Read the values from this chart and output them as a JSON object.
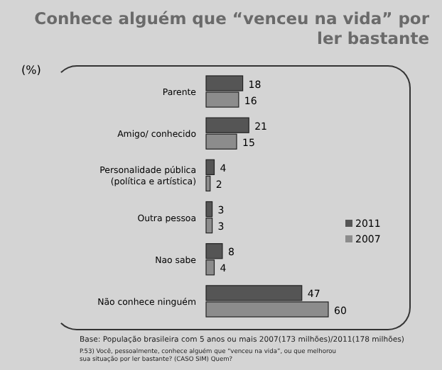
{
  "chart_data": {
    "type": "bar",
    "orientation": "horizontal",
    "title": "Conhece alguém que “venceu na vida” por ler bastante",
    "ylabel": "(%)",
    "categories": [
      "Parente",
      "Amigo/ conhecido",
      "Personalidade pública (política e artística)",
      "Outra pessoa",
      "Nao sabe",
      "Não conhece ninguém"
    ],
    "series": [
      {
        "name": "2011",
        "color": "#555555",
        "values": [
          18,
          21,
          4,
          3,
          8,
          47
        ]
      },
      {
        "name": "2007",
        "color": "#8c8c8c",
        "values": [
          16,
          15,
          2,
          3,
          4,
          60
        ]
      }
    ],
    "data_labels": true,
    "legend": "right",
    "annotations": [
      "Base: População brasileira com 5 anos ou mais 2007(173 milhões)/2011(178 milhões)",
      "P.53) Você, pessoalmente, conhece alguém que “venceu na vida”, ou que melhorou sua situação por ler bastante? (CASO SIM) Quem?"
    ]
  }
}
